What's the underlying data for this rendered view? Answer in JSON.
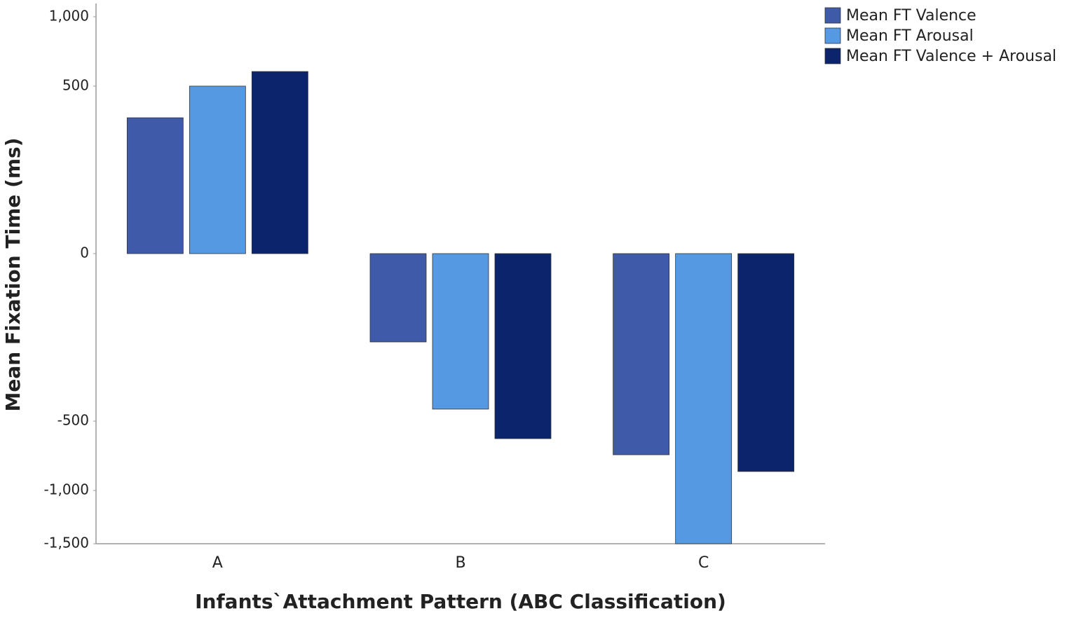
{
  "chart_data": {
    "type": "bar",
    "x_label": "Infants`Attachment Pattern (ABC Classification)",
    "y_label": "Mean Fixation Time (ms)",
    "categories": [
      "A",
      "B",
      "C"
    ],
    "series": [
      {
        "name": "Mean FT Valence",
        "color": "#3f5aa8",
        "values": [
          329,
          -139,
          -721
        ]
      },
      {
        "name": "Mean FT Arousal",
        "color": "#5599e3",
        "values": [
          500,
          -431,
          -1500
        ]
      },
      {
        "name": "Mean FT Valence + Arousal",
        "color": "#0b246b",
        "values": [
          591,
          -610,
          -846
        ]
      }
    ],
    "yscale": "sqrt",
    "ylim": [
      -1500,
      1115
    ],
    "yticks": [
      {
        "value": 1000,
        "label": "1,000"
      },
      500,
      0,
      -500,
      {
        "value": -1000,
        "label": "-1,000"
      },
      {
        "value": -1500,
        "label": "-1,500"
      }
    ],
    "legend": "top-right"
  }
}
